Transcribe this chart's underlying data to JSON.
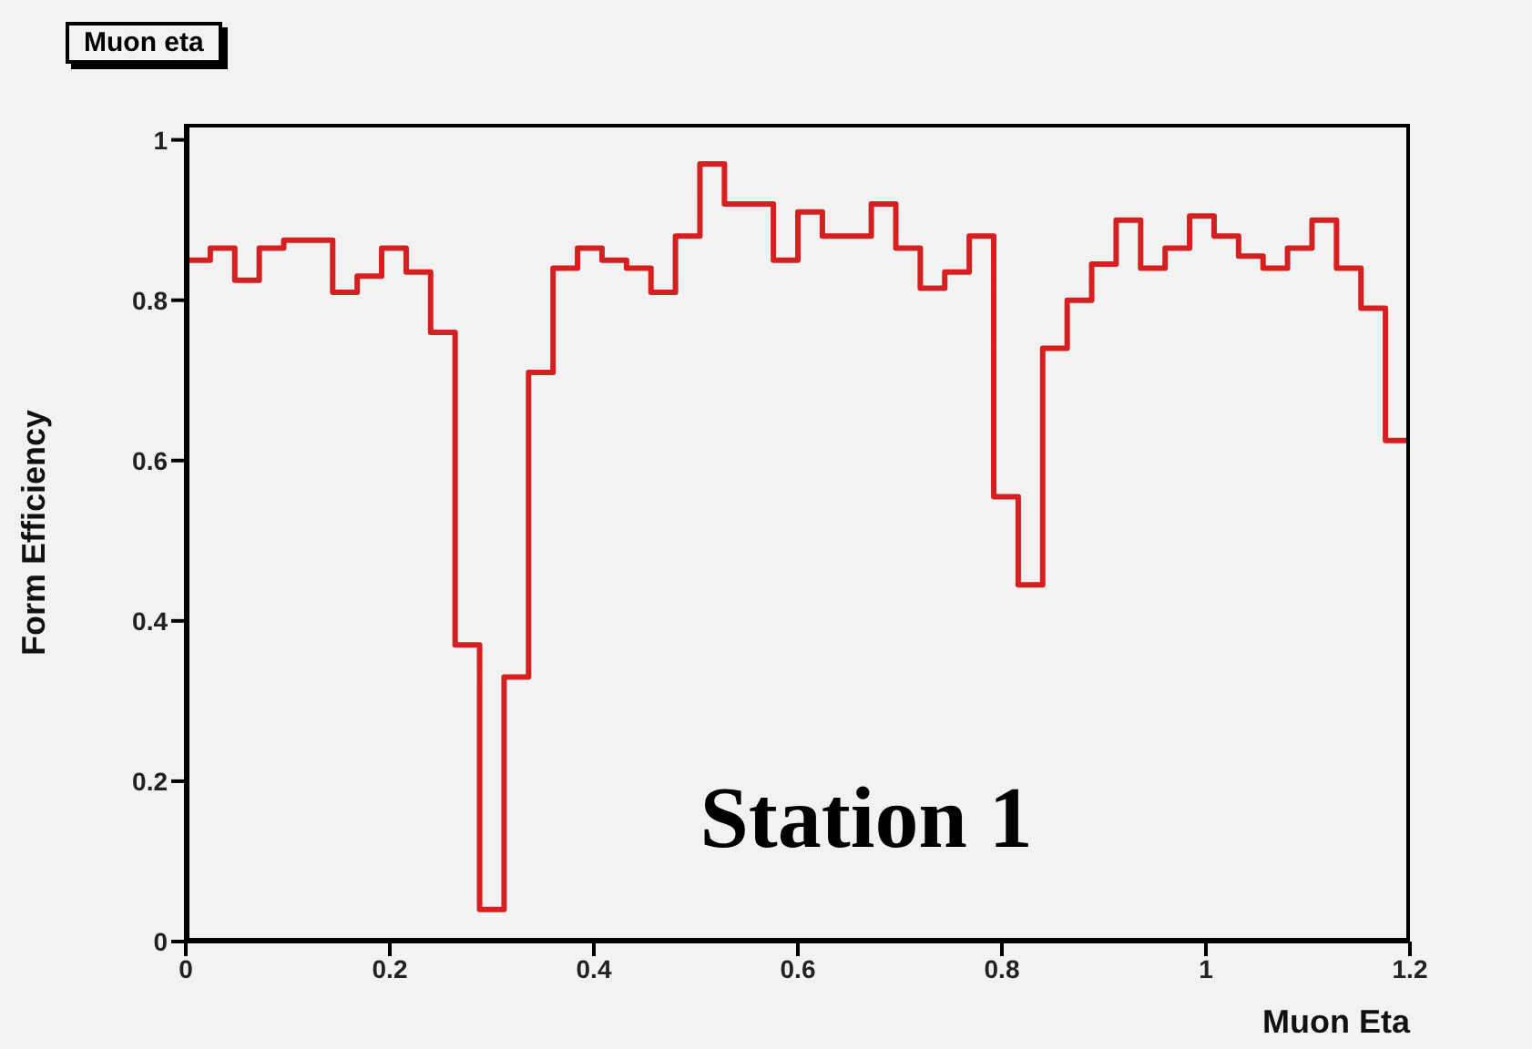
{
  "chart_data": {
    "type": "histogram",
    "title": "Muon eta",
    "xlabel": "Muon Eta",
    "ylabel": "Form Efficiency",
    "annotations": [
      "Station 1"
    ],
    "bins": [
      0,
      0.024,
      0.048,
      0.072,
      0.096,
      0.12,
      0.144,
      0.168,
      0.192,
      0.216,
      0.24,
      0.264,
      0.288,
      0.312,
      0.336,
      0.36,
      0.384,
      0.408,
      0.432,
      0.456,
      0.48,
      0.504,
      0.528,
      0.552,
      0.576,
      0.6,
      0.624,
      0.648,
      0.672,
      0.696,
      0.72,
      0.744,
      0.768,
      0.792,
      0.816,
      0.84,
      0.864,
      0.888,
      0.912,
      0.936,
      0.96,
      0.984,
      1.008,
      1.032,
      1.056,
      1.08,
      1.104,
      1.128,
      1.152,
      1.176,
      1.2
    ],
    "values": [
      0.85,
      0.865,
      0.825,
      0.865,
      0.875,
      0.875,
      0.81,
      0.83,
      0.865,
      0.835,
      0.76,
      0.37,
      0.04,
      0.33,
      0.71,
      0.84,
      0.865,
      0.85,
      0.84,
      0.81,
      0.88,
      0.97,
      0.92,
      0.92,
      0.85,
      0.91,
      0.88,
      0.88,
      0.92,
      0.865,
      0.815,
      0.835,
      0.88,
      0.555,
      0.445,
      0.74,
      0.8,
      0.845,
      0.9,
      0.84,
      0.865,
      0.905,
      0.88,
      0.855,
      0.84,
      0.865,
      0.9,
      0.84,
      0.79,
      0.625
    ],
    "color": "#d42020",
    "xlim": [
      0,
      1.2
    ],
    "ylim": [
      0,
      1.02
    ],
    "xticks": [
      0,
      0.2,
      0.4,
      0.6,
      0.8,
      1,
      1.2
    ],
    "yticks": [
      0,
      0.2,
      0.4,
      0.6,
      0.8,
      1
    ]
  }
}
